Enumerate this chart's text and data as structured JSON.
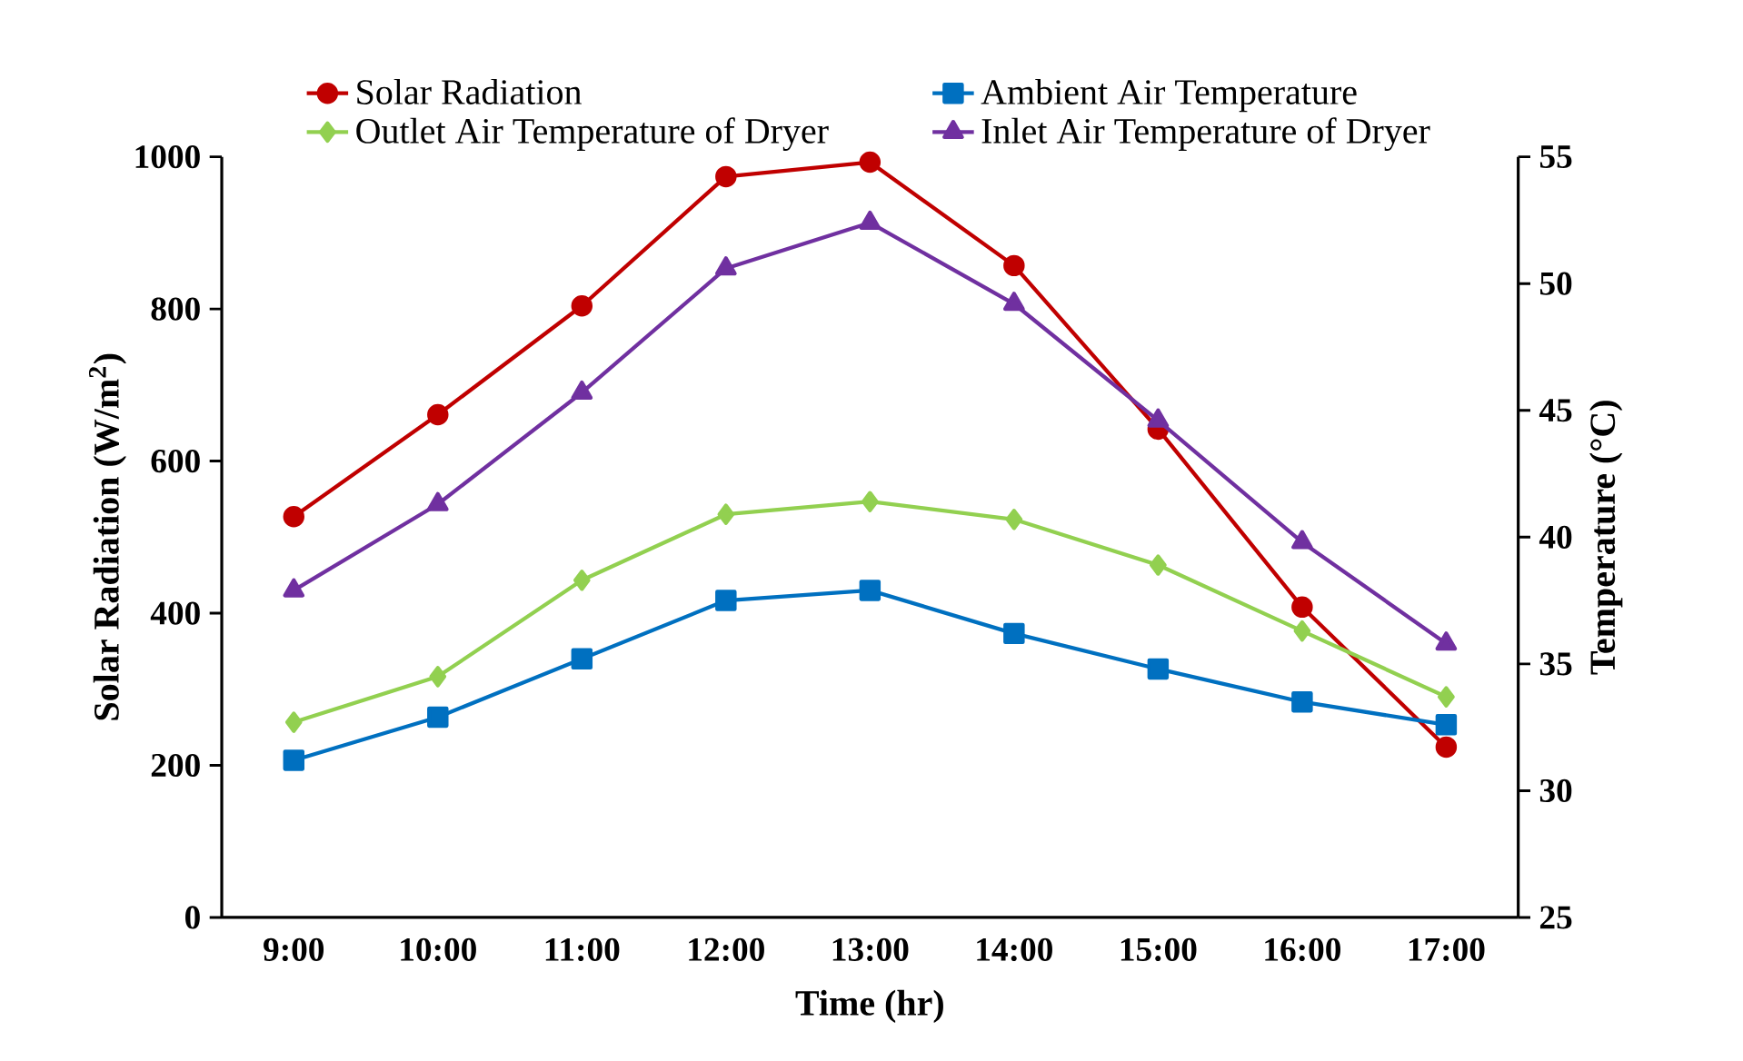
{
  "chart_data": {
    "type": "line",
    "xlabel": "Time (hr)",
    "ylabel": "Solar Radiation (W/m$^{2}$)",
    "y2label": "Temperature (°C)",
    "categories": [
      "9:00",
      "10:00",
      "11:00",
      "12:00",
      "13:00",
      "14:00",
      "15:00",
      "16:00",
      "17:00"
    ],
    "series": [
      {
        "name": "Solar Radiation",
        "color": "#c00000",
        "marker": "circle",
        "values": [
          527,
          661,
          804,
          974,
          993,
          857,
          642,
          408,
          224
        ]
      },
      {
        "name": "Ambient Air Temperature",
        "color": "#0070c0",
        "marker": "square",
        "axis": "y2",
        "values": [
          31.2,
          32.9,
          35.2,
          37.5,
          37.9,
          36.2,
          34.8,
          33.5,
          32.6
        ]
      },
      {
        "name": "Outlet Air Temperature of Dryer",
        "color": "#92d050",
        "marker": "diamond",
        "axis": "y2",
        "values": [
          32.7,
          34.5,
          38.3,
          40.9,
          41.4,
          40.7,
          38.9,
          36.3,
          33.7
        ]
      },
      {
        "name": "Inlet Air Temperature of Dryer",
        "color": "#7030a0",
        "marker": "triangle",
        "axis": "y2",
        "values": [
          37.9,
          41.3,
          45.7,
          50.6,
          52.4,
          49.2,
          44.6,
          39.8,
          35.8
        ]
      }
    ],
    "ylim": [
      0,
      1000
    ],
    "yticks": [
      0,
      200,
      400,
      600,
      800,
      1000
    ],
    "y2lim": [
      25,
      55
    ],
    "y2ticks": [
      25,
      30,
      35,
      40,
      45,
      50,
      55
    ],
    "grid": false,
    "legend": "top",
    "line_style": "solid"
  }
}
